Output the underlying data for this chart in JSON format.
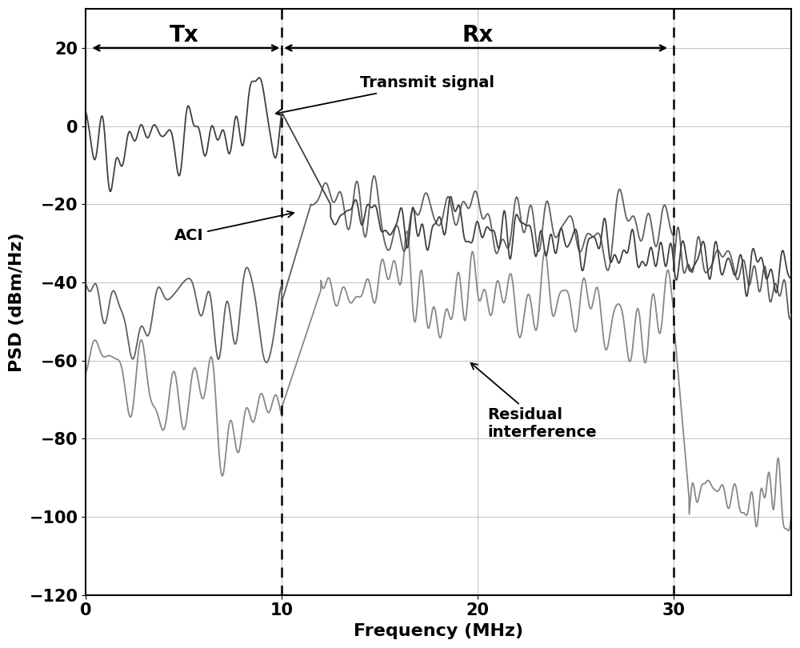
{
  "xlabel": "Frequency (MHz)",
  "ylabel": "PSD (dBm/Hz)",
  "xlim": [
    0,
    36
  ],
  "ylim": [
    -120,
    30
  ],
  "yticks": [
    -120,
    -100,
    -80,
    -60,
    -40,
    -20,
    0,
    20
  ],
  "xticks": [
    0,
    10,
    20,
    30
  ],
  "vline1": 10,
  "vline2": 30,
  "tx_label": "Tx",
  "rx_label": "Rx",
  "transmit_signal_label": "Transmit signal",
  "aci_label": "ACI",
  "residual_label": "Residual\ninterference",
  "color_tx": "#404040",
  "color_aci": "#606060",
  "color_res": "#888888",
  "grid_color": "#c0c0c0",
  "seed": 7,
  "n_points": 4000,
  "freq_max": 36
}
